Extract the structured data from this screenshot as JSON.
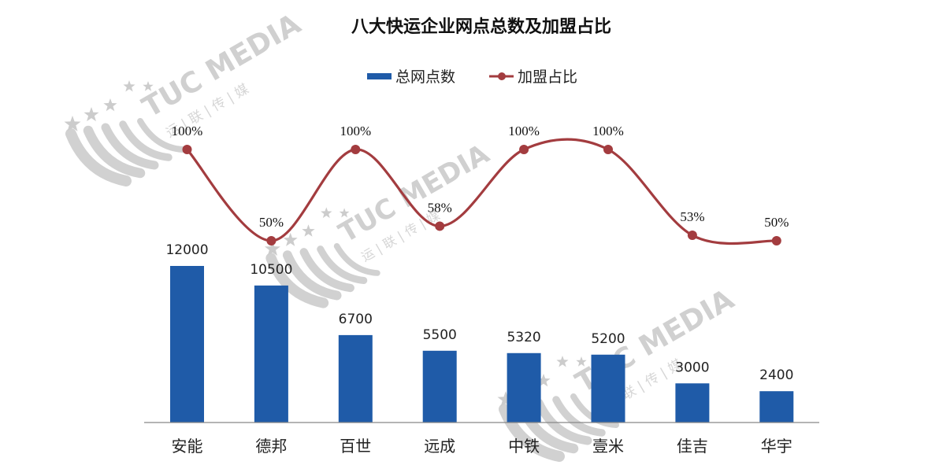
{
  "chart_data": {
    "type": "bar+line",
    "title": "八大快运企业网点总数及加盟占比",
    "categories": [
      "安能",
      "德邦",
      "百世",
      "远成",
      "中铁",
      "壹米",
      "佳吉",
      "华宇"
    ],
    "series": [
      {
        "name": "总网点数",
        "type": "bar",
        "color": "#1f5ba8",
        "values": [
          12000,
          10500,
          6700,
          5500,
          5320,
          5200,
          3000,
          2400
        ],
        "labels": [
          "12000",
          "10500",
          "6700",
          "5500",
          "5320",
          "5200",
          "3000",
          "2400"
        ]
      },
      {
        "name": "加盟占比",
        "type": "line",
        "color": "#a33c3f",
        "smooth": true,
        "values": [
          100,
          50,
          100,
          58,
          100,
          100,
          53,
          50
        ],
        "labels": [
          "100%",
          "50%",
          "100%",
          "58%",
          "100%",
          "100%",
          "53%",
          "50%"
        ]
      }
    ],
    "xlabel": "",
    "ylabel": "",
    "grid": false,
    "legend_position": "top"
  },
  "watermark": {
    "text": "TUC MEDIA",
    "subtext": "运 | 联 | 传 | 媒"
  }
}
